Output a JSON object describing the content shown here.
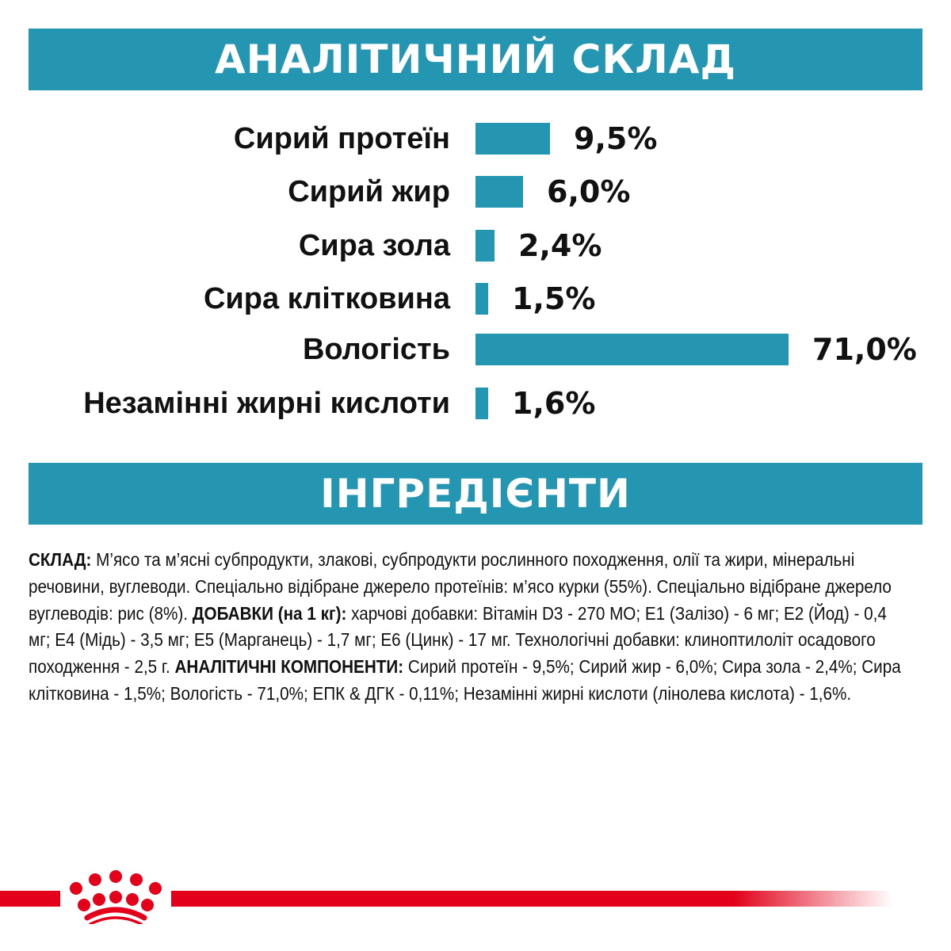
{
  "analytical": {
    "title": "АНАЛІТИЧНИЙ СКЛАД",
    "rows": [
      {
        "label": "Сирий протеїн",
        "value": 9.5,
        "value_label": "9,5%"
      },
      {
        "label": "Сирий жир",
        "value": 6.0,
        "value_label": "6,0%"
      },
      {
        "label": "Сира зола",
        "value": 2.4,
        "value_label": "2,4%"
      },
      {
        "label": "Сира клітковина",
        "value": 1.5,
        "value_label": "1,5%"
      },
      {
        "label": "Вологість",
        "value": 71.0,
        "value_label": "71,0%"
      },
      {
        "label": "Незамінні жирні кислоти",
        "value": 1.6,
        "value_label": "1,6%"
      }
    ]
  },
  "ingredients": {
    "title": "ІНГРЕДІЄНТИ",
    "part1_bold": "СКЛАД:",
    "part1": " М’ясо та м’ясні субпродукти, злакові, субпродукти рослинного походження, олії та жири, мінеральні речовини, вуглеводи. Спеціально відібране джерело протеїнів: м’ясо курки (55%). Спеціально відібране джерело вуглеводів: рис (8%). ",
    "part2_bold": "ДОБАВКИ (на 1 кг):",
    "part2": " харчові добавки: Вітамін D3 - 270 МО; Е1 (Залізо) - 6 мг; Е2 (Йод) - 0,4 мг; Е4 (Мідь) - 3,5 мг; Е5 (Марганець) - 1,7 мг; Е6 (Цинк) - 17 мг. Технологічні добавки: клиноптилоліт осадового походження - 2,5 г. ",
    "part3_bold": "АНАЛІТИЧНІ КОМПОНЕНТИ:",
    "part3": " Сирий протеїн - 9,5%; Сирий жир - 6,0%; Сира зола - 2,4%; Сира клітковина - 1,5%; Вологість - 71,0%; ЕПК & ДГК - 0,11%; Незамінні жирні кислоти (лінолева кислота) - 1,6%."
  },
  "brand": {
    "logo": "Royal Canin crown",
    "color": "#e2001a"
  },
  "colors": {
    "accent": "#2596b1"
  }
}
